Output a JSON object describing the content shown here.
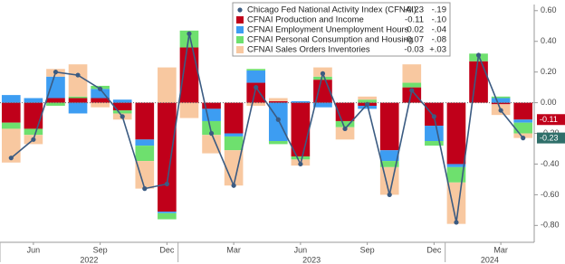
{
  "chart_data": {
    "type": "bar",
    "categories": [
      null,
      "Jun",
      null,
      null,
      "Sep",
      null,
      null,
      "Dec",
      null,
      null,
      "Mar",
      null,
      null,
      "Jun",
      null,
      null,
      "Sep",
      null,
      null,
      "Dec",
      null,
      null,
      "Mar",
      null
    ],
    "x_groups": [
      {
        "label": "2022",
        "count": 8
      },
      {
        "label": "2023",
        "count": 12
      },
      {
        "label": "2024",
        "count": 4
      }
    ],
    "ylim": [
      -0.91,
      0.64
    ],
    "yticks": [
      {
        "value": 0.6,
        "label": "0.60"
      },
      {
        "value": 0.4,
        "label": "0.40"
      },
      {
        "value": 0.2,
        "label": "0.20"
      },
      {
        "value": 0,
        "label": "0.00"
      },
      {
        "value": -0.2,
        "label": "-0.20"
      },
      {
        "value": -0.4,
        "label": "-0.40"
      },
      {
        "value": -0.6,
        "label": "-0.60"
      },
      {
        "value": -0.8,
        "label": "-0.80"
      }
    ],
    "zero_line": true,
    "series": [
      {
        "name": "Chicago Fed National Activity Index (CFNAI)",
        "type": "line",
        "color": "#3b5b82",
        "legend_values": [
          "-0.23",
          "-.19"
        ],
        "values": [
          -0.36,
          -0.24,
          0.2,
          0.18,
          0.09,
          -0.09,
          -0.56,
          -0.53,
          0.45,
          -0.2,
          -0.54,
          0.1,
          -0.11,
          -0.4,
          0.19,
          -0.17,
          -0.01,
          -0.6,
          0.08,
          -0.09,
          -0.78,
          0.31,
          -0.05,
          -0.23
        ]
      },
      {
        "name": "CFNAI Production and Income",
        "type": "bar",
        "color": "#c0001a",
        "legend_values": [
          "-0.11",
          "-.10"
        ],
        "values": [
          -0.13,
          -0.17,
          0.03,
          0.03,
          0.03,
          -0.05,
          -0.24,
          -0.71,
          0.36,
          -0.04,
          -0.2,
          0.13,
          0.01,
          -0.35,
          0.15,
          -0.12,
          -0.02,
          -0.31,
          0.1,
          -0.15,
          -0.4,
          0.27,
          -0.01,
          -0.11
        ]
      },
      {
        "name": "CFNAI Employment Unemployment Hours",
        "type": "bar",
        "color": "#3d9df2",
        "legend_values": [
          "-0.02",
          "-.04"
        ],
        "values": [
          0.05,
          0.03,
          0.14,
          -0.07,
          0.06,
          0.02,
          -0.04,
          -0.01,
          0.0,
          -0.08,
          -0.02,
          0.08,
          -0.25,
          0.01,
          -0.03,
          0.0,
          -0.02,
          -0.07,
          0.0,
          -0.1,
          -0.02,
          0.0,
          0.03,
          -0.02
        ]
      },
      {
        "name": "CFNAI Personal Consumption and Housing",
        "type": "bar",
        "color": "#6ee06e",
        "legend_values": [
          "-0.07",
          "-.08"
        ],
        "values": [
          -0.04,
          -0.04,
          -0.02,
          0.01,
          0.02,
          -0.02,
          -0.1,
          -0.04,
          0.11,
          -0.09,
          -0.09,
          0.01,
          -0.02,
          -0.02,
          0.02,
          -0.04,
          0.02,
          -0.04,
          0.03,
          -0.03,
          -0.1,
          0.05,
          0.01,
          -0.07
        ]
      },
      {
        "name": "CFNAI Sales Orders Inventories",
        "type": "bar",
        "color": "#f8c8a0",
        "legend_values": [
          "-0.03",
          "+.03"
        ],
        "values": [
          -0.22,
          -0.06,
          0.05,
          0.21,
          -0.03,
          -0.04,
          -0.18,
          0.23,
          -0.1,
          -0.12,
          -0.23,
          -0.02,
          0.02,
          -0.04,
          0.06,
          -0.08,
          0.02,
          -0.18,
          0.12,
          0.0,
          -0.27,
          0.0,
          -0.07,
          -0.03
        ]
      }
    ],
    "end_labels": [
      {
        "value": -0.11,
        "label": "-0.11",
        "color": "#c0001a"
      },
      {
        "value": -0.23,
        "label": "-0.23",
        "color": "#2f6f6a"
      }
    ]
  }
}
